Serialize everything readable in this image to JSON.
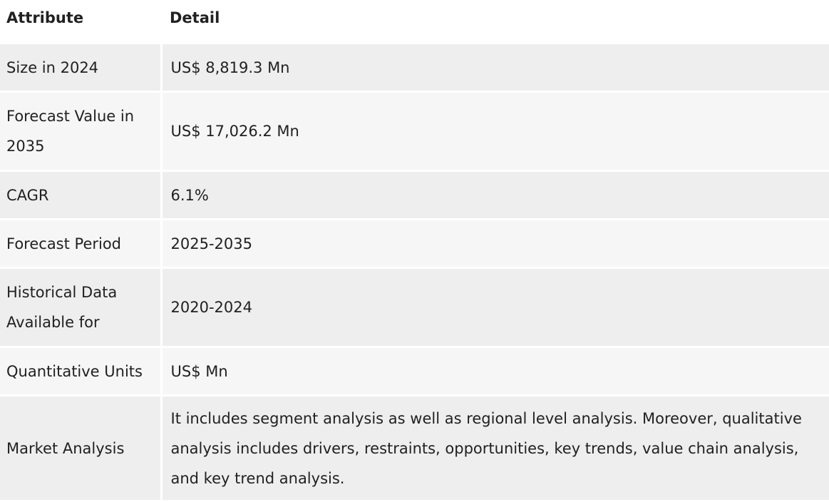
{
  "header": {
    "attribute": "Attribute",
    "detail": "Detail"
  },
  "rows": [
    {
      "attribute": "Size in 2024",
      "detail": "US$ 8,819.3 Mn"
    },
    {
      "attribute": "Forecast Value in 2035",
      "detail": "US$ 17,026.2 Mn"
    },
    {
      "attribute": "CAGR",
      "detail": "6.1%"
    },
    {
      "attribute": "Forecast Period",
      "detail": "2025-2035"
    },
    {
      "attribute": "Historical Data Available for",
      "detail": "2020-2024"
    },
    {
      "attribute": "Quantitative Units",
      "detail": "US$ Mn"
    },
    {
      "attribute": "Market Analysis",
      "detail": "It includes segment analysis as well as regional level analysis. Moreover, qualitative analysis includes drivers, restraints, opportunities, key trends, value chain analysis, and key trend analysis."
    }
  ],
  "colors": {
    "row_dark": "#eeeeee",
    "row_light": "#f6f6f6",
    "text": "#212121"
  }
}
